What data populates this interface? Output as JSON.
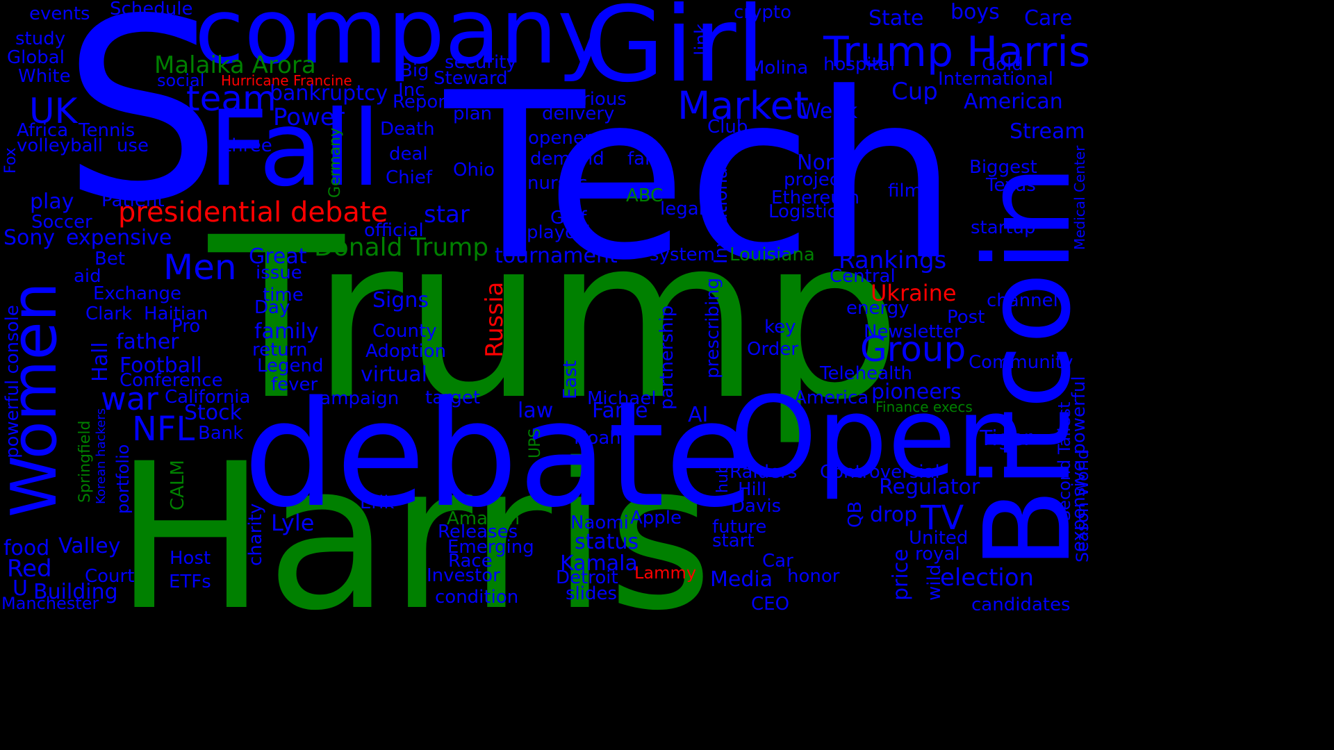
{
  "colors": {
    "background": "#000000",
    "blue": "#0000ff",
    "green": "#008000",
    "red": "#ff0000"
  },
  "words": [
    {
      "t": "S",
      "c": "blue"
    },
    {
      "t": "Tech",
      "c": "blue"
    },
    {
      "t": "Trump",
      "c": "green"
    },
    {
      "t": "Harris",
      "c": "green"
    },
    {
      "t": "debate",
      "c": "blue"
    },
    {
      "t": "Fall",
      "c": "blue"
    },
    {
      "t": "company",
      "c": "blue"
    },
    {
      "t": "Girl",
      "c": "blue"
    },
    {
      "t": "Open",
      "c": "blue"
    },
    {
      "t": "Women",
      "c": "blue"
    },
    {
      "t": "Bitcoin",
      "c": "blue"
    },
    {
      "t": "Trump Harris",
      "c": "blue"
    },
    {
      "t": "Market",
      "c": "blue"
    },
    {
      "t": "team",
      "c": "blue"
    },
    {
      "t": "UK",
      "c": "blue"
    },
    {
      "t": "Men",
      "c": "blue"
    },
    {
      "t": "Group",
      "c": "blue"
    },
    {
      "t": "war",
      "c": "blue"
    },
    {
      "t": "NFL",
      "c": "blue"
    },
    {
      "t": "TV",
      "c": "blue"
    },
    {
      "t": "presidential debate",
      "c": "red"
    },
    {
      "t": "Donald Trump",
      "c": "green"
    },
    {
      "t": "Malaika Arora",
      "c": "green"
    },
    {
      "t": "Hurricane Francine",
      "c": "red"
    },
    {
      "t": "Ukraine",
      "c": "red"
    },
    {
      "t": "Russia",
      "c": "red"
    },
    {
      "t": "Lammy",
      "c": "red"
    },
    {
      "t": "events",
      "c": "blue"
    },
    {
      "t": "Schedule",
      "c": "blue"
    },
    {
      "t": "study",
      "c": "blue"
    },
    {
      "t": "Global",
      "c": "blue"
    },
    {
      "t": "White",
      "c": "blue"
    },
    {
      "t": "social",
      "c": "blue"
    },
    {
      "t": "bankruptcy",
      "c": "blue"
    },
    {
      "t": "Inc",
      "c": "blue"
    },
    {
      "t": "Report",
      "c": "blue"
    },
    {
      "t": "Big",
      "c": "blue"
    },
    {
      "t": "security",
      "c": "blue"
    },
    {
      "t": "Steward",
      "c": "blue"
    },
    {
      "t": "crypto",
      "c": "blue"
    },
    {
      "t": "link",
      "c": "blue"
    },
    {
      "t": "State",
      "c": "blue"
    },
    {
      "t": "boys",
      "c": "blue"
    },
    {
      "t": "Care",
      "c": "blue"
    },
    {
      "t": "Molina",
      "c": "blue"
    },
    {
      "t": "hospital",
      "c": "blue"
    },
    {
      "t": "Gold",
      "c": "blue"
    },
    {
      "t": "International",
      "c": "blue"
    },
    {
      "t": "Cup",
      "c": "blue"
    },
    {
      "t": "American",
      "c": "blue"
    },
    {
      "t": "Week",
      "c": "blue"
    },
    {
      "t": "Stream",
      "c": "blue"
    },
    {
      "t": "Power",
      "c": "blue"
    },
    {
      "t": "Death",
      "c": "blue"
    },
    {
      "t": "plan",
      "c": "blue"
    },
    {
      "t": "Furious",
      "c": "blue"
    },
    {
      "t": "delivery",
      "c": "blue"
    },
    {
      "t": "opener",
      "c": "blue"
    },
    {
      "t": "Club",
      "c": "blue"
    },
    {
      "t": "Africa",
      "c": "blue"
    },
    {
      "t": "Tennis",
      "c": "blue"
    },
    {
      "t": "volleyball",
      "c": "blue"
    },
    {
      "t": "use",
      "c": "blue"
    },
    {
      "t": "three",
      "c": "blue"
    },
    {
      "t": "deal",
      "c": "blue"
    },
    {
      "t": "Germany",
      "c": "green"
    },
    {
      "t": "Fox",
      "c": "blue"
    },
    {
      "t": "Chief",
      "c": "blue"
    },
    {
      "t": "Ohio",
      "c": "blue"
    },
    {
      "t": "demand",
      "c": "blue"
    },
    {
      "t": "fan",
      "c": "blue"
    },
    {
      "t": "nurses",
      "c": "blue"
    },
    {
      "t": "North",
      "c": "blue"
    },
    {
      "t": "project",
      "c": "blue"
    },
    {
      "t": "Biggest",
      "c": "blue"
    },
    {
      "t": "Texas",
      "c": "blue"
    },
    {
      "t": "film",
      "c": "blue"
    },
    {
      "t": "Ethereum",
      "c": "blue"
    },
    {
      "t": "Logistics",
      "c": "blue"
    },
    {
      "t": "ABC",
      "c": "green"
    },
    {
      "t": "legal",
      "c": "blue"
    },
    {
      "t": "Medical Center",
      "c": "blue"
    },
    {
      "t": "startup",
      "c": "blue"
    },
    {
      "t": "city",
      "c": "blue"
    },
    {
      "t": "play",
      "c": "blue"
    },
    {
      "t": "Patient",
      "c": "blue"
    },
    {
      "t": "Soccer",
      "c": "blue"
    },
    {
      "t": "star",
      "c": "blue"
    },
    {
      "t": "official",
      "c": "blue"
    },
    {
      "t": "Golf",
      "c": "blue"
    },
    {
      "t": "playoff",
      "c": "blue"
    },
    {
      "t": "Sony",
      "c": "blue"
    },
    {
      "t": "expensive",
      "c": "blue"
    },
    {
      "t": "powerful console",
      "c": "blue"
    },
    {
      "t": "Invitational",
      "c": "blue"
    },
    {
      "t": "system",
      "c": "blue"
    },
    {
      "t": "Louisiana",
      "c": "green"
    },
    {
      "t": "Rankings",
      "c": "blue"
    },
    {
      "t": "Great",
      "c": "blue"
    },
    {
      "t": "issue",
      "c": "blue"
    },
    {
      "t": "Bet",
      "c": "blue"
    },
    {
      "t": "aid",
      "c": "blue"
    },
    {
      "t": "tournament",
      "c": "blue"
    },
    {
      "t": "Central",
      "c": "blue"
    },
    {
      "t": "channel",
      "c": "blue"
    },
    {
      "t": "Exchange",
      "c": "blue"
    },
    {
      "t": "time",
      "c": "blue"
    },
    {
      "t": "Day",
      "c": "blue"
    },
    {
      "t": "Signs",
      "c": "blue"
    },
    {
      "t": "energy",
      "c": "blue"
    },
    {
      "t": "Post",
      "c": "blue"
    },
    {
      "t": "key",
      "c": "blue"
    },
    {
      "t": "Clark",
      "c": "blue"
    },
    {
      "t": "Haitian",
      "c": "blue"
    },
    {
      "t": "Pro",
      "c": "blue"
    },
    {
      "t": "County",
      "c": "blue"
    },
    {
      "t": "Newsletter",
      "c": "blue"
    },
    {
      "t": "prescribing",
      "c": "blue"
    },
    {
      "t": "partnership",
      "c": "blue"
    },
    {
      "t": "family",
      "c": "blue"
    },
    {
      "t": "Hall",
      "c": "blue"
    },
    {
      "t": "father",
      "c": "blue"
    },
    {
      "t": "return",
      "c": "blue"
    },
    {
      "t": "Adoption",
      "c": "blue"
    },
    {
      "t": "Order",
      "c": "blue"
    },
    {
      "t": "Community",
      "c": "blue"
    },
    {
      "t": "expensive powerful",
      "c": "blue"
    },
    {
      "t": "Football",
      "c": "blue"
    },
    {
      "t": "Legend",
      "c": "blue"
    },
    {
      "t": "Conference",
      "c": "blue"
    },
    {
      "t": "virtual",
      "c": "blue"
    },
    {
      "t": "Telehealth",
      "c": "blue"
    },
    {
      "t": "fever",
      "c": "blue"
    },
    {
      "t": "East",
      "c": "blue"
    },
    {
      "t": "pioneers",
      "c": "blue"
    },
    {
      "t": "California",
      "c": "blue"
    },
    {
      "t": "campaign",
      "c": "blue"
    },
    {
      "t": "target",
      "c": "blue"
    },
    {
      "t": "Michael",
      "c": "blue"
    },
    {
      "t": "America",
      "c": "blue"
    },
    {
      "t": "Finance execs",
      "c": "green"
    },
    {
      "t": "Stock",
      "c": "blue"
    },
    {
      "t": "law",
      "c": "blue"
    },
    {
      "t": "Fame",
      "c": "blue"
    },
    {
      "t": "AI",
      "c": "blue"
    },
    {
      "t": "Springfield",
      "c": "green"
    },
    {
      "t": "Korean hackers",
      "c": "blue"
    },
    {
      "t": "Bank",
      "c": "blue"
    },
    {
      "t": "UPS",
      "c": "green"
    },
    {
      "t": "Tiger",
      "c": "blue"
    },
    {
      "t": "Noah",
      "c": "blue"
    },
    {
      "t": "Season World",
      "c": "blue"
    },
    {
      "t": "Second Tallest",
      "c": "blue"
    },
    {
      "t": "portfolio",
      "c": "blue"
    },
    {
      "t": "CALM",
      "c": "green"
    },
    {
      "t": "Raiders",
      "c": "blue"
    },
    {
      "t": "Controversial",
      "c": "blue"
    },
    {
      "t": "hub",
      "c": "blue"
    },
    {
      "t": "Hill",
      "c": "blue"
    },
    {
      "t": "Regulator",
      "c": "blue"
    },
    {
      "t": "Erik",
      "c": "blue"
    },
    {
      "t": "Davis",
      "c": "blue"
    },
    {
      "t": "charity",
      "c": "blue"
    },
    {
      "t": "Lyle",
      "c": "blue"
    },
    {
      "t": "Amazon",
      "c": "green"
    },
    {
      "t": "Apple",
      "c": "blue"
    },
    {
      "t": "drop",
      "c": "blue"
    },
    {
      "t": "Naomi",
      "c": "blue"
    },
    {
      "t": "food",
      "c": "blue"
    },
    {
      "t": "Valley",
      "c": "blue"
    },
    {
      "t": "Releases",
      "c": "blue"
    },
    {
      "t": "future",
      "c": "blue"
    },
    {
      "t": "start",
      "c": "blue"
    },
    {
      "t": "QB",
      "c": "blue"
    },
    {
      "t": "United",
      "c": "blue"
    },
    {
      "t": "Emerging",
      "c": "blue"
    },
    {
      "t": "status",
      "c": "blue"
    },
    {
      "t": "Race",
      "c": "blue"
    },
    {
      "t": "price",
      "c": "blue"
    },
    {
      "t": "royal",
      "c": "blue"
    },
    {
      "t": "Red",
      "c": "blue"
    },
    {
      "t": "Host",
      "c": "blue"
    },
    {
      "t": "Kamala",
      "c": "blue"
    },
    {
      "t": "Car",
      "c": "blue"
    },
    {
      "t": "wild",
      "c": "blue"
    },
    {
      "t": "Court",
      "c": "blue"
    },
    {
      "t": "Investor",
      "c": "blue"
    },
    {
      "t": "Detroit",
      "c": "blue"
    },
    {
      "t": "Media",
      "c": "blue"
    },
    {
      "t": "honor",
      "c": "blue"
    },
    {
      "t": "election",
      "c": "blue"
    },
    {
      "t": "U",
      "c": "blue"
    },
    {
      "t": "ETFs",
      "c": "blue"
    },
    {
      "t": "Building",
      "c": "blue"
    },
    {
      "t": "slides",
      "c": "blue"
    },
    {
      "t": "condition",
      "c": "blue"
    },
    {
      "t": "Manchester",
      "c": "blue"
    },
    {
      "t": "CEO",
      "c": "blue"
    },
    {
      "t": "candidates",
      "c": "blue"
    }
  ]
}
